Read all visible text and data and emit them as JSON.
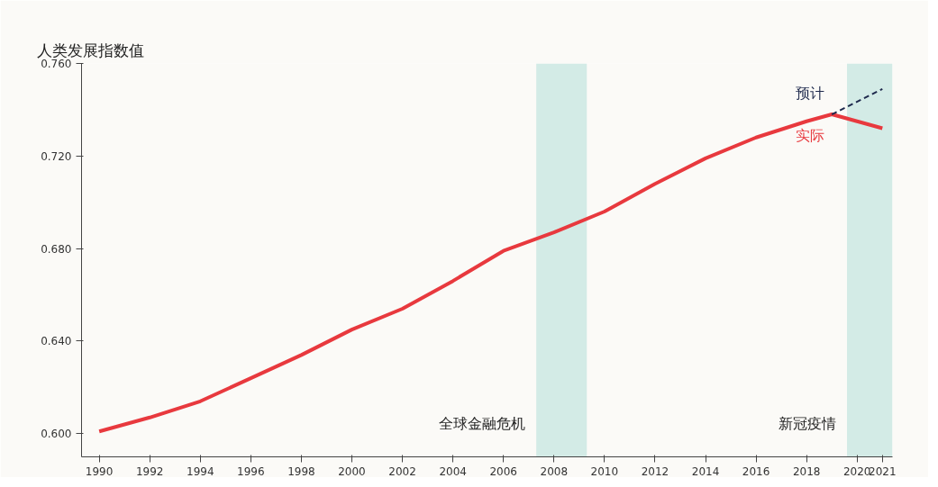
{
  "chart_data": {
    "type": "line",
    "ylabel": "人类发展指数值",
    "xlim": [
      1989.3,
      2021.4
    ],
    "xticks": [
      1990,
      1992,
      1994,
      1996,
      1998,
      2000,
      2002,
      2004,
      2006,
      2008,
      2010,
      2012,
      2014,
      2016,
      2018,
      2020,
      2021
    ],
    "ylim": [
      0.59,
      0.76
    ],
    "yticks": [
      {
        "value": 0.6,
        "label": "0.600"
      },
      {
        "value": 0.64,
        "label": "0.640"
      },
      {
        "value": 0.68,
        "label": "0.680"
      },
      {
        "value": 0.72,
        "label": "0.720"
      },
      {
        "value": 0.76,
        "label": "0.760"
      }
    ],
    "series": [
      {
        "name": "实际",
        "color": "#e8393e",
        "line_style": "solid",
        "x": [
          1990,
          1992,
          1994,
          1996,
          1998,
          2000,
          2002,
          2004,
          2006,
          2008,
          2010,
          2012,
          2014,
          2016,
          2018,
          2019,
          2020,
          2021
        ],
        "values": [
          0.601,
          0.607,
          0.614,
          0.624,
          0.634,
          0.645,
          0.654,
          0.666,
          0.679,
          0.687,
          0.696,
          0.708,
          0.719,
          0.728,
          0.735,
          0.738,
          0.735,
          0.732
        ]
      },
      {
        "name": "预计",
        "color": "#1f2a4d",
        "line_style": "dashed",
        "x": [
          2019,
          2021
        ],
        "values": [
          0.738,
          0.749
        ]
      }
    ],
    "bands": [
      {
        "axis": "x",
        "from": 2007.3,
        "to": 2009.3,
        "label": "全球金融危机",
        "color": "#d3ebe6"
      },
      {
        "axis": "x",
        "from": 2019.6,
        "to": 2021.4,
        "label": "新冠疫情",
        "color": "#d3ebe6"
      }
    ],
    "grid": false
  }
}
